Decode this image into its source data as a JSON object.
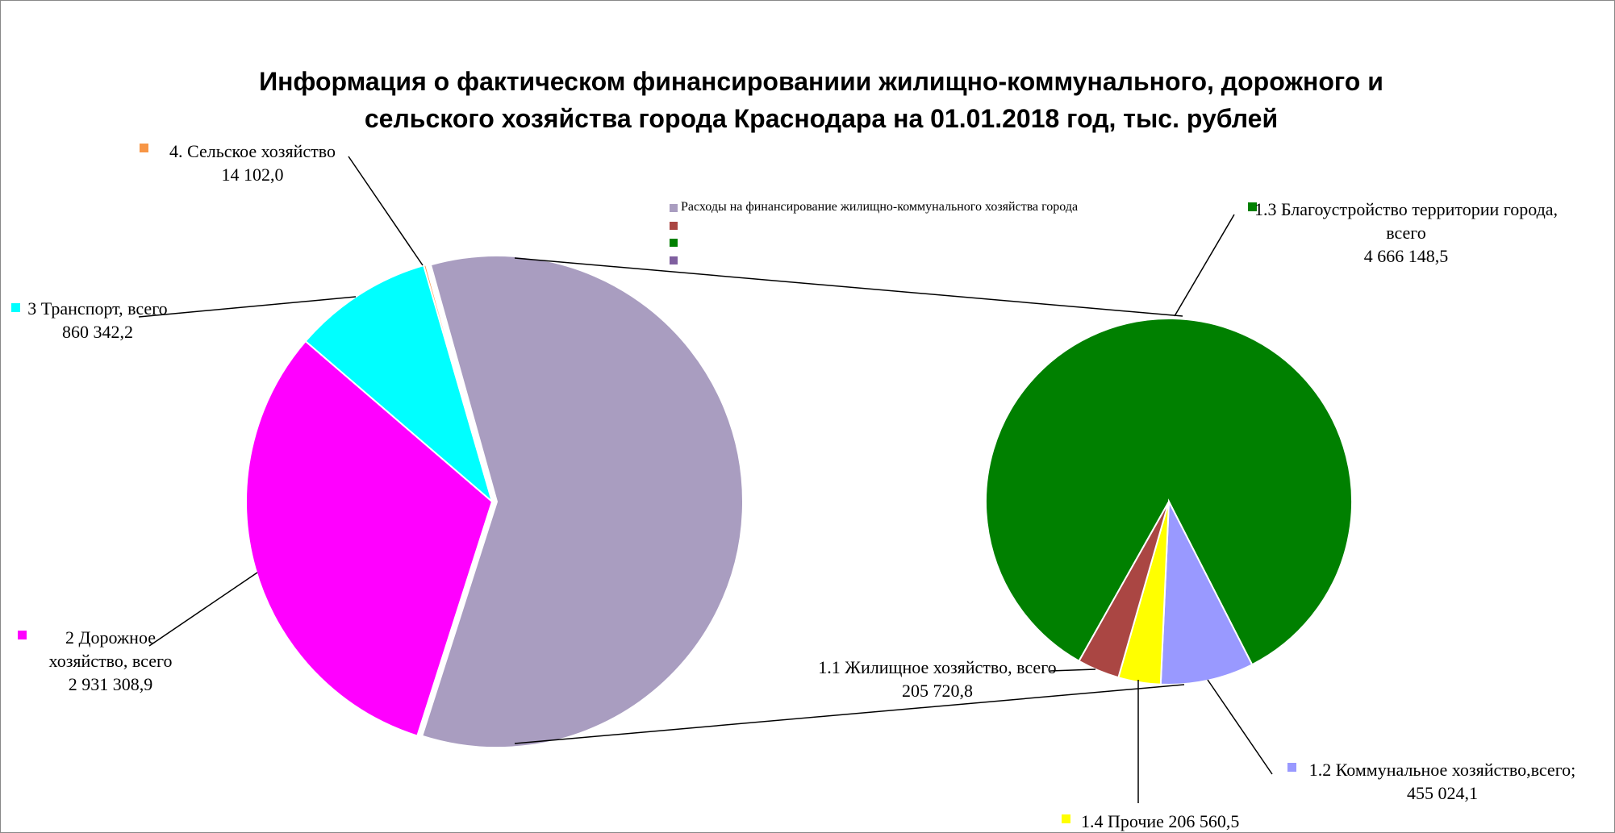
{
  "chart_data": [
    {
      "type": "pie",
      "title": "Информация о фактическом финансированиии жилищно-коммунального, дорожного и сельского хозяйства города Краснодара на 01.01.2018 год, тыс. рублей",
      "categories": [
        "Расходы на финансирование  жилищно-коммунального   хозяйства города",
        "2 Дорожное хозяйство, всего",
        "3 Транспорт, всего",
        "4. Сельское хозяйство"
      ],
      "values": [
        5533453.9,
        2931308.9,
        860342.2,
        14102.0
      ],
      "value_labels": [
        null,
        "2 931 308,9",
        "860 342,2",
        "14 102,0"
      ],
      "colors": [
        "#a99dc0",
        "#ff00ff",
        "#00ffff",
        "#f79646"
      ]
    },
    {
      "type": "pie",
      "categories": [
        "1.3 Благоустройство территории города, всего",
        "1.2 Коммунальное хозяйство,всего;",
        "1.4 Прочие",
        "1.1 Жилищное хозяйство, всего"
      ],
      "values": [
        4666148.5,
        455024.1,
        206560.5,
        205720.8
      ],
      "value_labels": [
        "4 666 148,5",
        "455 024,1",
        "206 560,5",
        "205 720,8"
      ],
      "colors": [
        "#008000",
        "#9999ff",
        "#ffff00",
        "#aa4643"
      ]
    }
  ]
}
